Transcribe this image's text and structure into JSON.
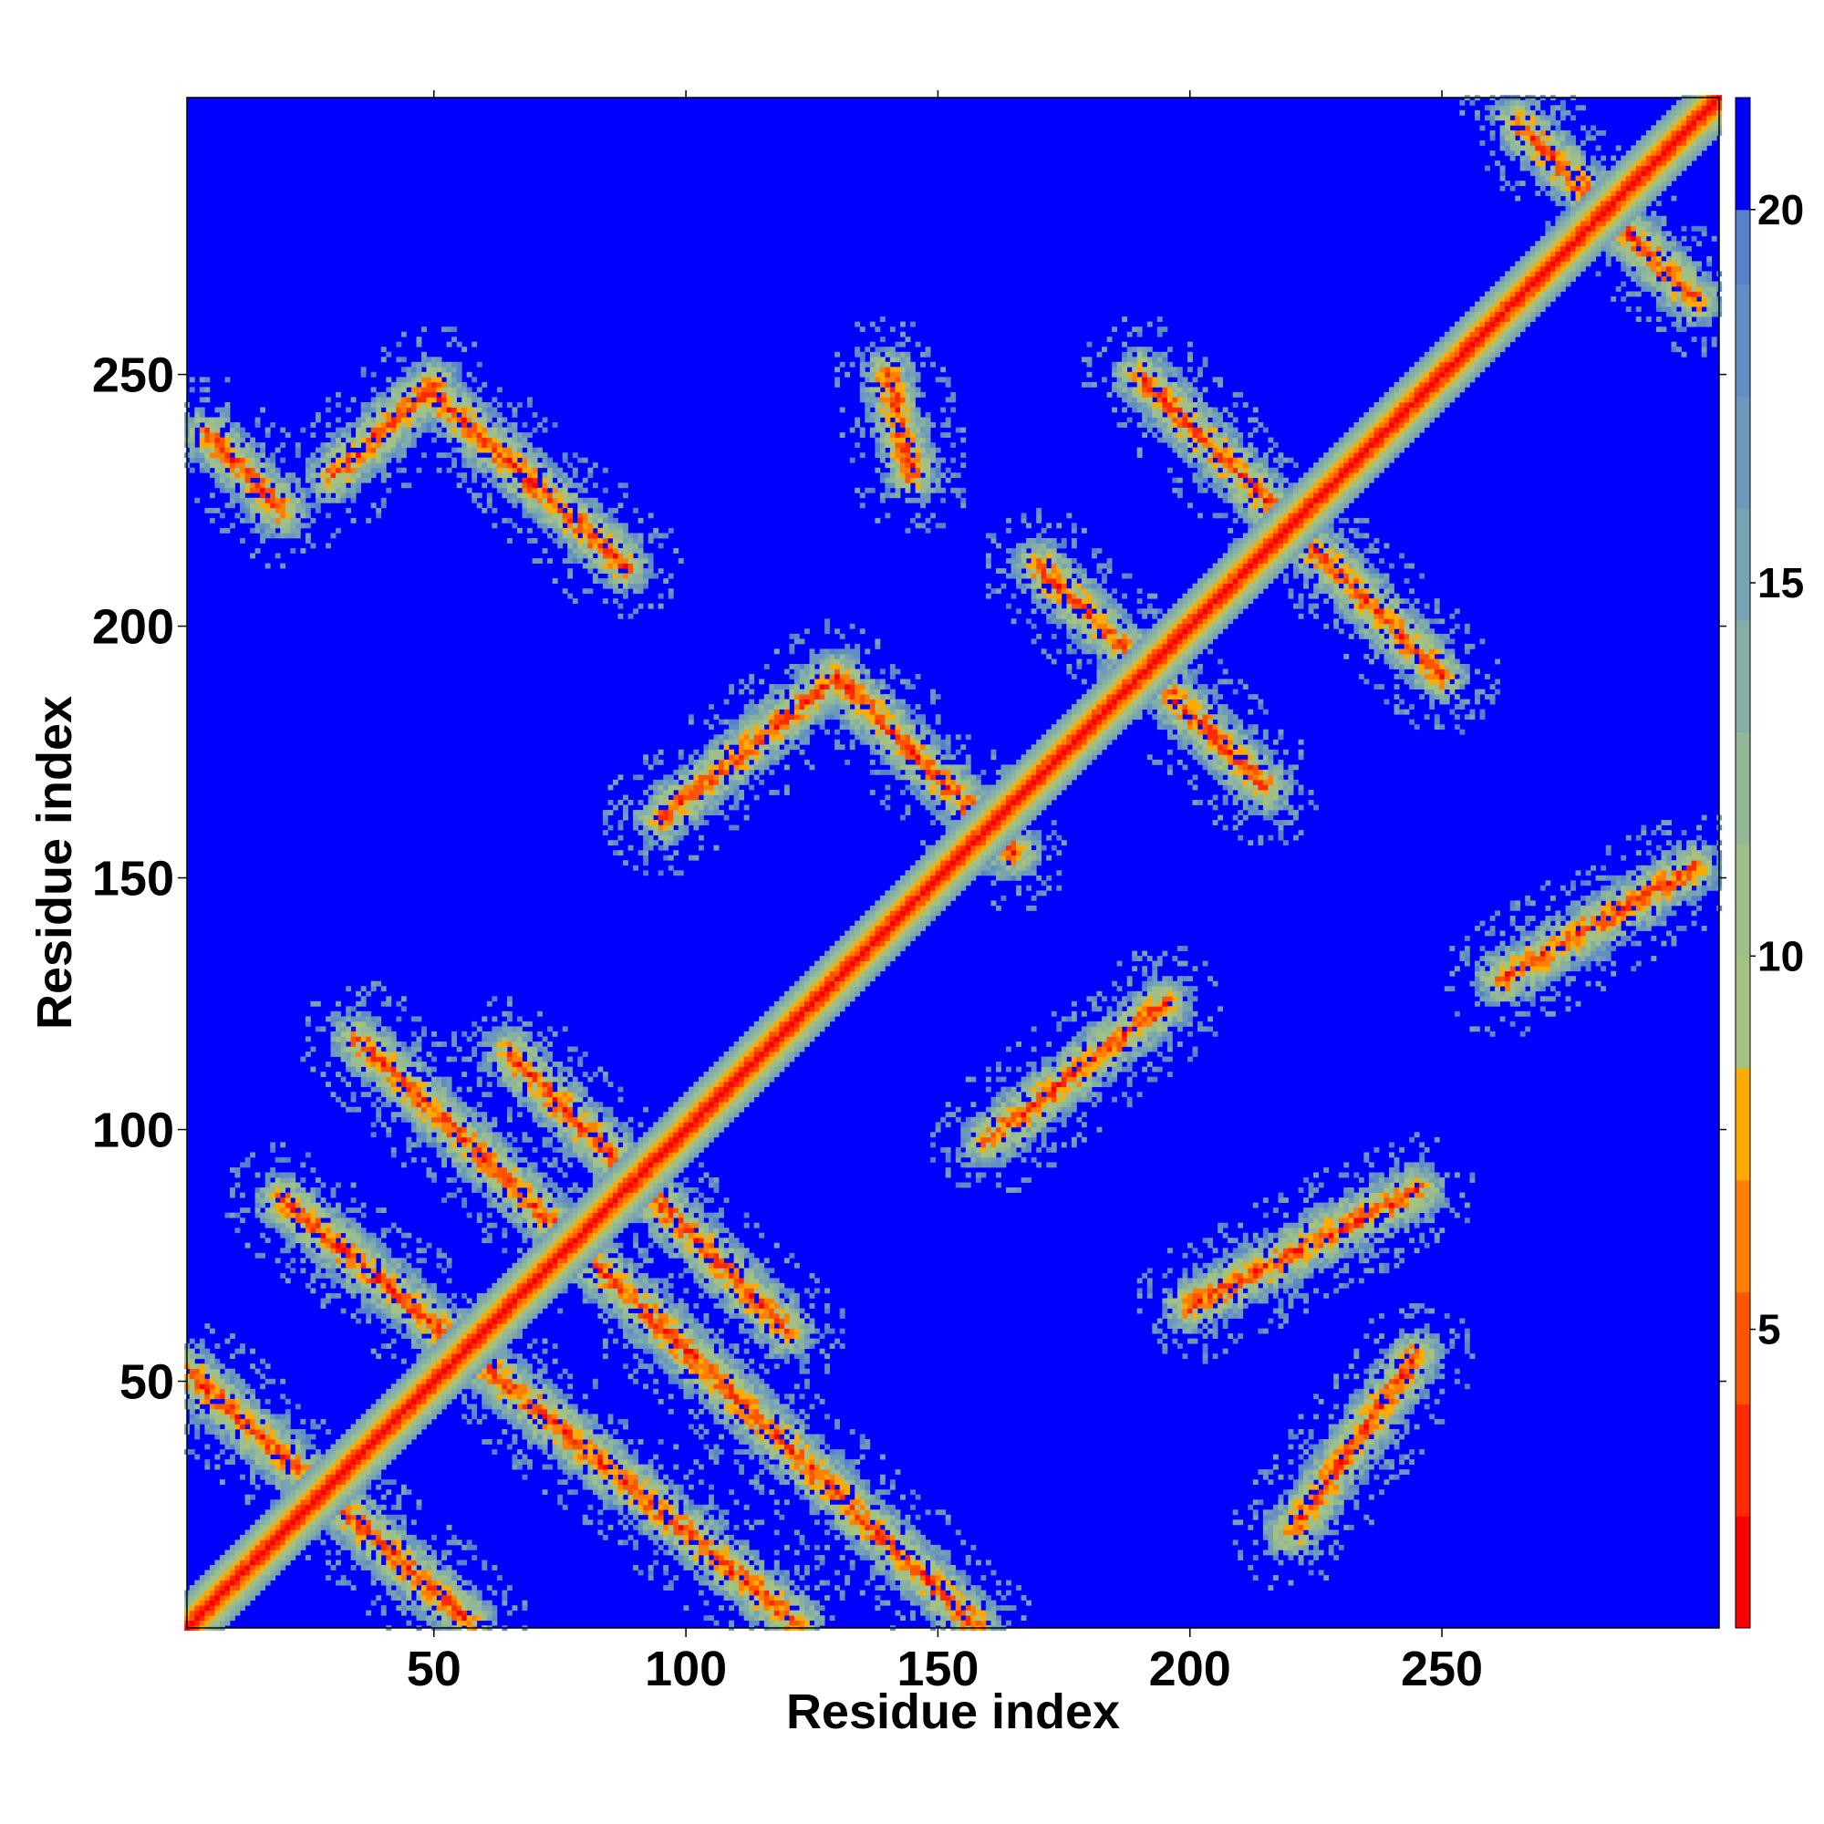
{
  "chart_data": {
    "type": "heatmap",
    "title": "",
    "xlabel": "Residue index",
    "ylabel": "Residue index",
    "xlim": [
      1,
      305
    ],
    "ylim": [
      1,
      305
    ],
    "x_ticks": [
      50,
      100,
      150,
      200,
      250
    ],
    "y_ticks": [
      50,
      100,
      150,
      200,
      250
    ],
    "colorbar": {
      "ticks": [
        5,
        10,
        15,
        20
      ],
      "range": [
        1,
        21.5
      ],
      "levels": [
        {
          "from": 1.0,
          "to": 2.5,
          "color": "#ff0000"
        },
        {
          "from": 2.5,
          "to": 4.0,
          "color": "#ff2a00"
        },
        {
          "from": 4.0,
          "to": 5.5,
          "color": "#ff5500"
        },
        {
          "from": 5.5,
          "to": 7.0,
          "color": "#ff7f00"
        },
        {
          "from": 7.0,
          "to": 8.5,
          "color": "#ffaa00"
        },
        {
          "from": 8.5,
          "to": 10.0,
          "color": "#a6c27f"
        },
        {
          "from": 10.0,
          "to": 11.5,
          "color": "#9fbf8a"
        },
        {
          "from": 11.5,
          "to": 13.0,
          "color": "#93b898"
        },
        {
          "from": 13.0,
          "to": 14.5,
          "color": "#85aea6"
        },
        {
          "from": 14.5,
          "to": 16.0,
          "color": "#78a3b2"
        },
        {
          "from": 16.0,
          "to": 17.5,
          "color": "#6c98bb"
        },
        {
          "from": 17.5,
          "to": 19.0,
          "color": "#608dc2"
        },
        {
          "from": 19.0,
          "to": 20.0,
          "color": "#5582c8"
        },
        {
          "from": 20.0,
          "to": 21.5,
          "color": "#0000ff"
        }
      ]
    },
    "colors": {
      "background": "#0000ff",
      "contact_near": "#ff0000",
      "contact_mid": "#ffaa00",
      "contact_far": "#a6c27f"
    },
    "features": {
      "diagonal": {
        "from": 1,
        "to": 305
      },
      "contact_bands": [
        {
          "start": [
            1,
            52
          ],
          "end": [
            57,
            2
          ]
        },
        {
          "start": [
            20,
            86
          ],
          "end": [
            122,
            2
          ]
        },
        {
          "start": [
            35,
            118
          ],
          "end": [
            157,
            2
          ]
        },
        {
          "start": [
            65,
            115
          ],
          "end": [
            120,
            60
          ]
        },
        {
          "start": [
            5,
            238
          ],
          "end": [
            20,
            223
          ]
        },
        {
          "start": [
            30,
            230
          ],
          "end": [
            50,
            248
          ]
        },
        {
          "start": [
            50,
            246
          ],
          "end": [
            88,
            212
          ]
        },
        {
          "start": [
            95,
            162
          ],
          "end": [
            130,
            190
          ]
        },
        {
          "start": [
            130,
            190
          ],
          "end": [
            165,
            155
          ]
        },
        {
          "start": [
            140,
            250
          ],
          "end": [
            145,
            230
          ]
        },
        {
          "start": [
            170,
            212
          ],
          "end": [
            215,
            168
          ]
        },
        {
          "start": [
            160,
            98
          ],
          "end": [
            195,
            125
          ]
        },
        {
          "start": [
            200,
            65
          ],
          "end": [
            245,
            88
          ]
        },
        {
          "start": [
            220,
            20
          ],
          "end": [
            245,
            55
          ]
        },
        {
          "start": [
            190,
            250
          ],
          "end": [
            250,
            190
          ]
        },
        {
          "start": [
            262,
            130
          ],
          "end": [
            300,
            152
          ]
        },
        {
          "start": [
            265,
            300
          ],
          "end": [
            300,
            265
          ]
        }
      ]
    }
  }
}
